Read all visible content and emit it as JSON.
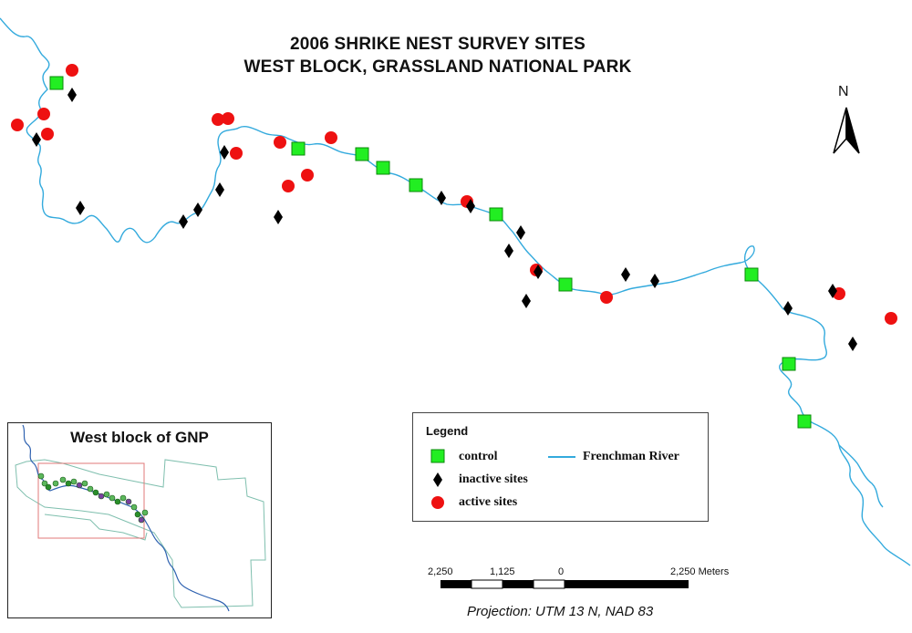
{
  "title": {
    "line1": "2006 SHRIKE NEST SURVEY SITES",
    "line2": "WEST BLOCK, GRASSLAND NATIONAL PARK"
  },
  "north_label": "N",
  "inset": {
    "title": "West block of GNP"
  },
  "legend": {
    "title": "Legend",
    "items": [
      {
        "label": "control",
        "symbol": "green-square",
        "color": "#22ee22"
      },
      {
        "label": "inactive sites",
        "symbol": "black-diamond",
        "color": "#000000"
      },
      {
        "label": "active sites",
        "symbol": "red-circle",
        "color": "#ee1111"
      },
      {
        "label": "Frenchman River",
        "symbol": "line",
        "color": "#33aadd"
      }
    ]
  },
  "scale_bar": {
    "labels": [
      "2,250",
      "1,125",
      "0",
      "2,250 Meters"
    ]
  },
  "projection": "Projection: UTM 13 N, NAD 83",
  "colors": {
    "river": "#33aadd",
    "control": "#22ee22",
    "active": "#ee1111",
    "inactive": "#000000",
    "inset_boundary": "#7fbfae",
    "inset_extent": "#e07a7a"
  }
}
